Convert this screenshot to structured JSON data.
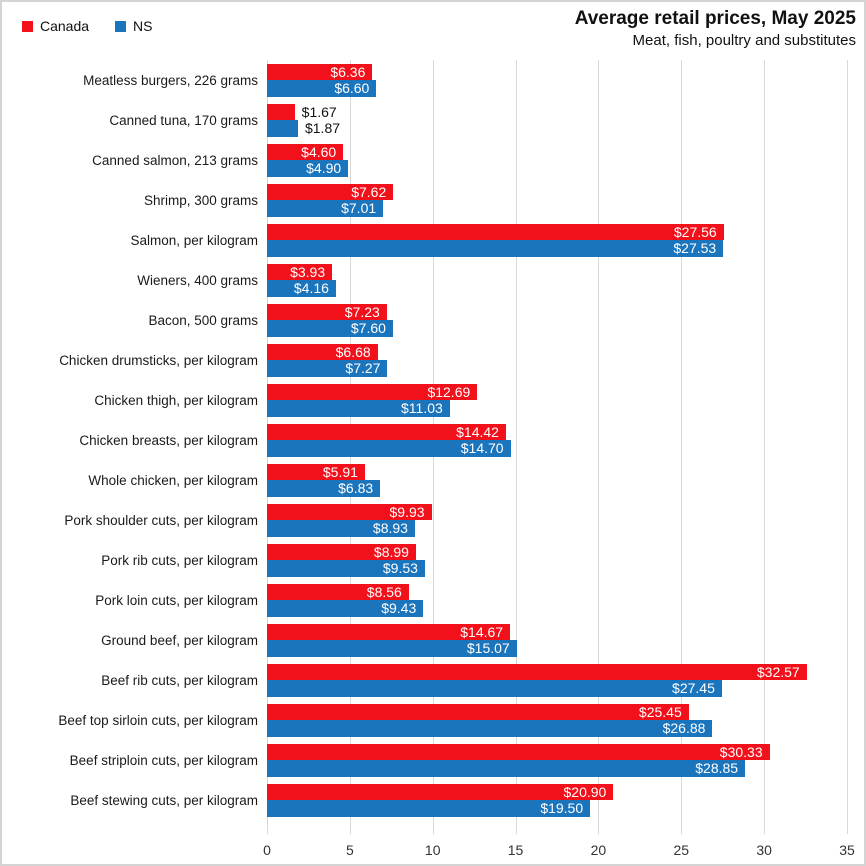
{
  "header": {
    "title": "Average retail prices, May 2025",
    "subtitle": "Meat, fish, poultry and substitutes"
  },
  "legend": {
    "items": [
      {
        "label": "Canada",
        "color": "#f2101a"
      },
      {
        "label": "NS",
        "color": "#1b75bc"
      }
    ]
  },
  "colors": {
    "canada_red": "#f2101a",
    "ns_blue": "#1b75bc",
    "gridline": "#d9d9d9",
    "axis_text": "#333333",
    "label_text": "#1a1a1a",
    "bar_label_inside": "#ffffff",
    "bar_label_outside": "#111111",
    "border": "#d4d4d4"
  },
  "chart_data": {
    "type": "bar",
    "orientation": "horizontal",
    "title": "Average retail prices, May 2025",
    "subtitle": "Meat, fish, poultry and substitutes",
    "xlabel": "",
    "ylabel": "",
    "xlim": [
      0,
      35
    ],
    "xticks": [
      0,
      5,
      10,
      15,
      20,
      25,
      30,
      35
    ],
    "grid": true,
    "legend_position": "top-left",
    "value_prefix": "$",
    "categories": [
      "Meatless burgers, 226 grams",
      "Canned tuna, 170 grams",
      "Canned salmon, 213 grams",
      "Shrimp, 300 grams",
      "Salmon, per kilogram",
      "Wieners, 400 grams",
      "Bacon, 500 grams",
      "Chicken drumsticks, per kilogram",
      "Chicken thigh, per kilogram",
      "Chicken breasts, per kilogram",
      "Whole chicken, per kilogram",
      "Pork shoulder cuts, per kilogram",
      "Pork rib cuts, per kilogram",
      "Pork loin cuts, per kilogram",
      "Ground beef, per kilogram",
      "Beef rib cuts, per kilogram",
      "Beef top sirloin cuts, per kilogram",
      "Beef striploin cuts, per kilogram",
      "Beef stewing cuts, per kilogram"
    ],
    "series": [
      {
        "name": "Canada",
        "color": "#f2101a",
        "values": [
          6.36,
          1.67,
          4.6,
          7.62,
          27.56,
          3.93,
          7.23,
          6.68,
          12.69,
          14.42,
          5.91,
          9.93,
          8.99,
          8.56,
          14.67,
          32.57,
          25.45,
          30.33,
          20.9
        ]
      },
      {
        "name": "NS",
        "color": "#1b75bc",
        "values": [
          6.6,
          1.87,
          4.9,
          7.01,
          27.53,
          4.16,
          7.6,
          7.27,
          11.03,
          14.7,
          6.83,
          8.93,
          9.53,
          9.43,
          15.07,
          27.45,
          26.88,
          28.85,
          19.5
        ]
      }
    ]
  }
}
